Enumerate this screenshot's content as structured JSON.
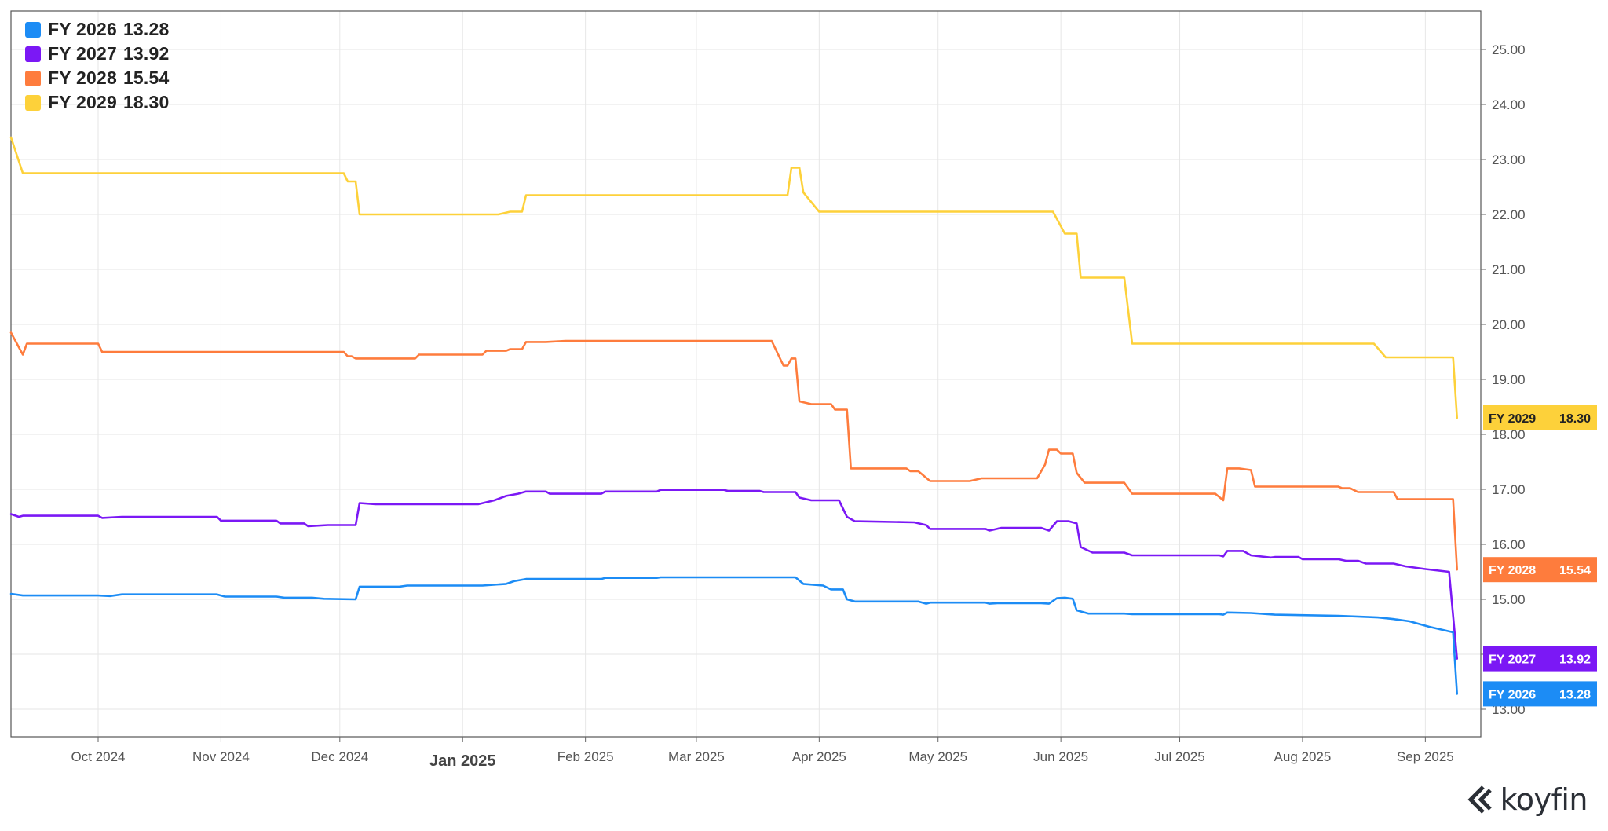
{
  "chart_data": {
    "type": "line",
    "y_range": [
      12.5,
      25.7
    ],
    "y_ticks": [
      "13.00",
      "14.00",
      "15.00",
      "16.00",
      "17.00",
      "18.00",
      "19.00",
      "20.00",
      "21.00",
      "22.00",
      "23.00",
      "24.00",
      "25.00"
    ],
    "x_range": [
      "2024-09-09",
      "2025-09-15"
    ],
    "x_ticks": [
      {
        "date": "2024-10-01",
        "label": "Oct 2024"
      },
      {
        "date": "2024-11-01",
        "label": "Nov 2024"
      },
      {
        "date": "2024-12-01",
        "label": "Dec 2024"
      },
      {
        "date": "2025-01-01",
        "label": "Jan 2025",
        "major": true
      },
      {
        "date": "2025-02-01",
        "label": "Feb 2025"
      },
      {
        "date": "2025-03-01",
        "label": "Mar 2025"
      },
      {
        "date": "2025-04-01",
        "label": "Apr 2025"
      },
      {
        "date": "2025-05-01",
        "label": "May 2025"
      },
      {
        "date": "2025-06-01",
        "label": "Jun 2025"
      },
      {
        "date": "2025-07-01",
        "label": "Jul 2025"
      },
      {
        "date": "2025-08-01",
        "label": "Aug 2025"
      },
      {
        "date": "2025-09-01",
        "label": "Sep 2025"
      }
    ],
    "grid": true,
    "legend_position": "top-left",
    "series": [
      {
        "name": "FY 2029",
        "last_value": "18.30",
        "color": "#fdd13a",
        "label_text_color": "#222222",
        "points": [
          [
            "2024-09-09",
            23.4
          ],
          [
            "2024-09-12",
            22.75
          ],
          [
            "2024-12-02",
            22.75
          ],
          [
            "2024-12-03",
            22.6
          ],
          [
            "2024-12-05",
            22.6
          ],
          [
            "2024-12-06",
            22.0
          ],
          [
            "2025-01-10",
            22.0
          ],
          [
            "2025-01-13",
            22.05
          ],
          [
            "2025-01-16",
            22.05
          ],
          [
            "2025-01-17",
            22.35
          ],
          [
            "2025-03-24",
            22.35
          ],
          [
            "2025-03-25",
            22.85
          ],
          [
            "2025-03-27",
            22.85
          ],
          [
            "2025-03-28",
            22.4
          ],
          [
            "2025-04-01",
            22.05
          ],
          [
            "2025-05-30",
            22.05
          ],
          [
            "2025-06-02",
            21.65
          ],
          [
            "2025-06-05",
            21.65
          ],
          [
            "2025-06-06",
            20.85
          ],
          [
            "2025-06-17",
            20.85
          ],
          [
            "2025-06-19",
            19.65
          ],
          [
            "2025-08-19",
            19.65
          ],
          [
            "2025-08-22",
            19.4
          ],
          [
            "2025-09-08",
            19.4
          ],
          [
            "2025-09-09",
            18.3
          ]
        ]
      },
      {
        "name": "FY 2028",
        "last_value": "15.54",
        "color": "#fe7c3d",
        "label_text_color": "#ffffff",
        "points": [
          [
            "2024-09-09",
            19.85
          ],
          [
            "2024-09-12",
            19.45
          ],
          [
            "2024-09-13",
            19.65
          ],
          [
            "2024-10-01",
            19.65
          ],
          [
            "2024-10-02",
            19.5
          ],
          [
            "2024-12-02",
            19.5
          ],
          [
            "2024-12-03",
            19.42
          ],
          [
            "2024-12-04",
            19.42
          ],
          [
            "2024-12-05",
            19.38
          ],
          [
            "2024-12-20",
            19.38
          ],
          [
            "2024-12-21",
            19.45
          ],
          [
            "2025-01-06",
            19.45
          ],
          [
            "2025-01-07",
            19.52
          ],
          [
            "2025-01-12",
            19.52
          ],
          [
            "2025-01-13",
            19.55
          ],
          [
            "2025-01-16",
            19.55
          ],
          [
            "2025-01-17",
            19.68
          ],
          [
            "2025-01-22",
            19.68
          ],
          [
            "2025-01-27",
            19.7
          ],
          [
            "2025-03-20",
            19.7
          ],
          [
            "2025-03-23",
            19.25
          ],
          [
            "2025-03-24",
            19.25
          ],
          [
            "2025-03-25",
            19.38
          ],
          [
            "2025-03-26",
            19.38
          ],
          [
            "2025-03-27",
            18.6
          ],
          [
            "2025-03-30",
            18.55
          ],
          [
            "2025-04-04",
            18.55
          ],
          [
            "2025-04-05",
            18.45
          ],
          [
            "2025-04-08",
            18.45
          ],
          [
            "2025-04-09",
            17.38
          ],
          [
            "2025-04-23",
            17.38
          ],
          [
            "2025-04-24",
            17.33
          ],
          [
            "2025-04-26",
            17.33
          ],
          [
            "2025-04-29",
            17.15
          ],
          [
            "2025-05-09",
            17.15
          ],
          [
            "2025-05-12",
            17.2
          ],
          [
            "2025-05-26",
            17.2
          ],
          [
            "2025-05-28",
            17.45
          ],
          [
            "2025-05-29",
            17.72
          ],
          [
            "2025-05-31",
            17.72
          ],
          [
            "2025-06-01",
            17.65
          ],
          [
            "2025-06-04",
            17.65
          ],
          [
            "2025-06-05",
            17.3
          ],
          [
            "2025-06-07",
            17.12
          ],
          [
            "2025-06-17",
            17.12
          ],
          [
            "2025-06-19",
            16.92
          ],
          [
            "2025-07-10",
            16.92
          ],
          [
            "2025-07-12",
            16.8
          ],
          [
            "2025-07-13",
            17.38
          ],
          [
            "2025-07-16",
            17.38
          ],
          [
            "2025-07-19",
            17.35
          ],
          [
            "2025-07-20",
            17.05
          ],
          [
            "2025-08-10",
            17.05
          ],
          [
            "2025-08-11",
            17.02
          ],
          [
            "2025-08-13",
            17.02
          ],
          [
            "2025-08-15",
            16.95
          ],
          [
            "2025-08-24",
            16.95
          ],
          [
            "2025-08-25",
            16.82
          ],
          [
            "2025-09-08",
            16.82
          ],
          [
            "2025-09-09",
            15.54
          ]
        ]
      },
      {
        "name": "FY 2027",
        "last_value": "13.92",
        "color": "#7b18f5",
        "label_text_color": "#ffffff",
        "points": [
          [
            "2024-09-09",
            16.55
          ],
          [
            "2024-09-11",
            16.5
          ],
          [
            "2024-09-12",
            16.52
          ],
          [
            "2024-10-01",
            16.52
          ],
          [
            "2024-10-02",
            16.48
          ],
          [
            "2024-10-07",
            16.5
          ],
          [
            "2024-10-31",
            16.5
          ],
          [
            "2024-11-01",
            16.43
          ],
          [
            "2024-11-15",
            16.43
          ],
          [
            "2024-11-16",
            16.38
          ],
          [
            "2024-11-22",
            16.38
          ],
          [
            "2024-11-23",
            16.33
          ],
          [
            "2024-11-28",
            16.35
          ],
          [
            "2024-12-05",
            16.35
          ],
          [
            "2024-12-06",
            16.75
          ],
          [
            "2024-12-10",
            16.73
          ],
          [
            "2025-01-05",
            16.73
          ],
          [
            "2025-01-09",
            16.8
          ],
          [
            "2025-01-12",
            16.88
          ],
          [
            "2025-01-15",
            16.92
          ],
          [
            "2025-01-17",
            16.96
          ],
          [
            "2025-01-22",
            16.96
          ],
          [
            "2025-01-23",
            16.92
          ],
          [
            "2025-02-05",
            16.92
          ],
          [
            "2025-02-06",
            16.96
          ],
          [
            "2025-02-19",
            16.96
          ],
          [
            "2025-02-20",
            16.99
          ],
          [
            "2025-03-08",
            16.99
          ],
          [
            "2025-03-09",
            16.97
          ],
          [
            "2025-03-17",
            16.97
          ],
          [
            "2025-03-18",
            16.95
          ],
          [
            "2025-03-26",
            16.95
          ],
          [
            "2025-03-27",
            16.85
          ],
          [
            "2025-03-30",
            16.8
          ],
          [
            "2025-04-06",
            16.8
          ],
          [
            "2025-04-08",
            16.5
          ],
          [
            "2025-04-10",
            16.42
          ],
          [
            "2025-04-25",
            16.4
          ],
          [
            "2025-04-28",
            16.35
          ],
          [
            "2025-04-29",
            16.28
          ],
          [
            "2025-05-13",
            16.28
          ],
          [
            "2025-05-14",
            16.25
          ],
          [
            "2025-05-17",
            16.3
          ],
          [
            "2025-05-27",
            16.3
          ],
          [
            "2025-05-29",
            16.25
          ],
          [
            "2025-05-31",
            16.42
          ],
          [
            "2025-06-03",
            16.42
          ],
          [
            "2025-06-05",
            16.38
          ],
          [
            "2025-06-06",
            15.95
          ],
          [
            "2025-06-09",
            15.85
          ],
          [
            "2025-06-17",
            15.85
          ],
          [
            "2025-06-19",
            15.8
          ],
          [
            "2025-07-11",
            15.8
          ],
          [
            "2025-07-12",
            15.78
          ],
          [
            "2025-07-13",
            15.88
          ],
          [
            "2025-07-17",
            15.88
          ],
          [
            "2025-07-19",
            15.8
          ],
          [
            "2025-07-24",
            15.76
          ],
          [
            "2025-07-25",
            15.77
          ],
          [
            "2025-07-31",
            15.77
          ],
          [
            "2025-08-01",
            15.73
          ],
          [
            "2025-08-10",
            15.73
          ],
          [
            "2025-08-12",
            15.7
          ],
          [
            "2025-08-15",
            15.7
          ],
          [
            "2025-08-17",
            15.65
          ],
          [
            "2025-08-24",
            15.65
          ],
          [
            "2025-08-27",
            15.6
          ],
          [
            "2025-09-01",
            15.55
          ],
          [
            "2025-09-07",
            15.5
          ],
          [
            "2025-09-09",
            13.92
          ]
        ]
      },
      {
        "name": "FY 2026",
        "last_value": "13.28",
        "color": "#1c8cf5",
        "label_text_color": "#ffffff",
        "points": [
          [
            "2024-09-09",
            15.1
          ],
          [
            "2024-09-12",
            15.07
          ],
          [
            "2024-10-01",
            15.07
          ],
          [
            "2024-10-04",
            15.06
          ],
          [
            "2024-10-07",
            15.09
          ],
          [
            "2024-10-31",
            15.09
          ],
          [
            "2024-11-02",
            15.05
          ],
          [
            "2024-11-15",
            15.05
          ],
          [
            "2024-11-17",
            15.03
          ],
          [
            "2024-11-24",
            15.03
          ],
          [
            "2024-11-27",
            15.01
          ],
          [
            "2024-12-05",
            15.0
          ],
          [
            "2024-12-06",
            15.23
          ],
          [
            "2024-12-16",
            15.23
          ],
          [
            "2024-12-18",
            15.25
          ],
          [
            "2025-01-06",
            15.25
          ],
          [
            "2025-01-12",
            15.28
          ],
          [
            "2025-01-14",
            15.33
          ],
          [
            "2025-01-17",
            15.37
          ],
          [
            "2025-02-05",
            15.37
          ],
          [
            "2025-02-06",
            15.39
          ],
          [
            "2025-02-19",
            15.39
          ],
          [
            "2025-02-20",
            15.4
          ],
          [
            "2025-03-26",
            15.4
          ],
          [
            "2025-03-28",
            15.28
          ],
          [
            "2025-04-02",
            15.25
          ],
          [
            "2025-04-04",
            15.18
          ],
          [
            "2025-04-07",
            15.18
          ],
          [
            "2025-04-08",
            15.0
          ],
          [
            "2025-04-10",
            14.96
          ],
          [
            "2025-04-26",
            14.96
          ],
          [
            "2025-04-28",
            14.92
          ],
          [
            "2025-04-29",
            14.94
          ],
          [
            "2025-05-13",
            14.94
          ],
          [
            "2025-05-14",
            14.92
          ],
          [
            "2025-05-16",
            14.93
          ],
          [
            "2025-05-27",
            14.93
          ],
          [
            "2025-05-29",
            14.92
          ],
          [
            "2025-05-31",
            15.02
          ],
          [
            "2025-06-02",
            15.03
          ],
          [
            "2025-06-04",
            15.01
          ],
          [
            "2025-06-05",
            14.8
          ],
          [
            "2025-06-08",
            14.74
          ],
          [
            "2025-06-17",
            14.74
          ],
          [
            "2025-06-19",
            14.73
          ],
          [
            "2025-07-11",
            14.73
          ],
          [
            "2025-07-12",
            14.72
          ],
          [
            "2025-07-13",
            14.76
          ],
          [
            "2025-07-19",
            14.75
          ],
          [
            "2025-07-25",
            14.72
          ],
          [
            "2025-08-10",
            14.7
          ],
          [
            "2025-08-17",
            14.68
          ],
          [
            "2025-08-20",
            14.67
          ],
          [
            "2025-08-24",
            14.64
          ],
          [
            "2025-08-28",
            14.6
          ],
          [
            "2025-09-02",
            14.5
          ],
          [
            "2025-09-08",
            14.4
          ],
          [
            "2025-09-09",
            13.28
          ]
        ]
      }
    ]
  },
  "legend": [
    {
      "name": "FY 2026",
      "value": "13.28",
      "color": "#1c8cf5"
    },
    {
      "name": "FY 2027",
      "value": "13.92",
      "color": "#7b18f5"
    },
    {
      "name": "FY 2028",
      "value": "15.54",
      "color": "#fe7c3d"
    },
    {
      "name": "FY 2029",
      "value": "18.30",
      "color": "#fdd13a"
    }
  ],
  "brand": {
    "name": "koyfin",
    "icon": "koyfin-logo-icon"
  }
}
